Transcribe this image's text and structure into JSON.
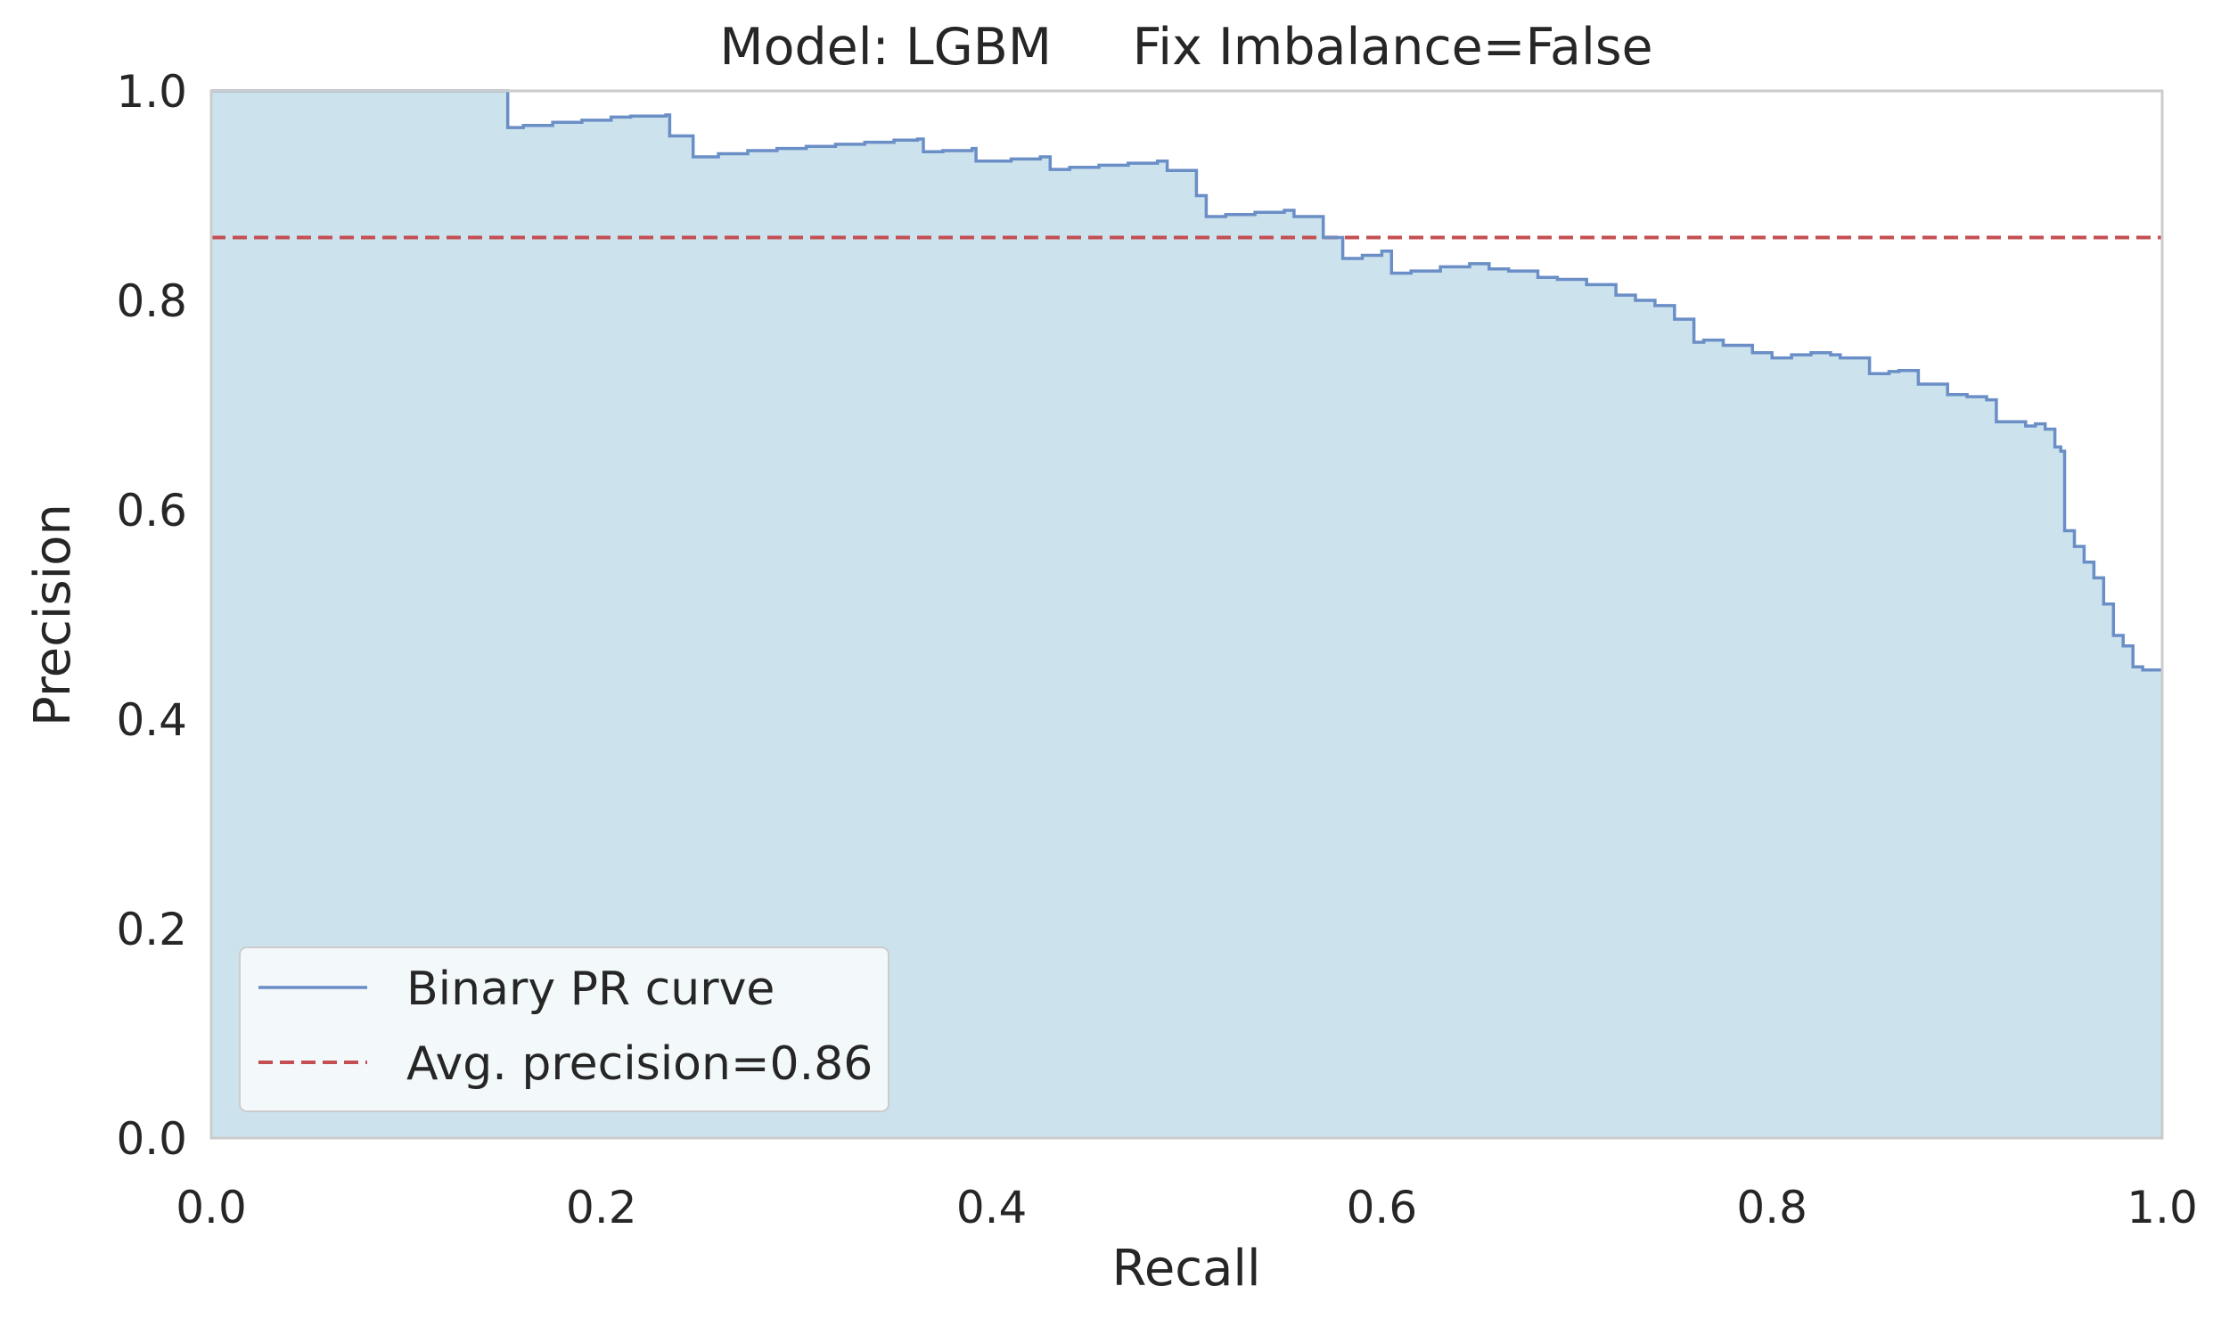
{
  "chart_data": {
    "type": "area",
    "title": "Model: LGBM     Fix Imbalance=False",
    "xlabel": "Recall",
    "ylabel": "Precision",
    "xlim": [
      0.0,
      1.0
    ],
    "ylim": [
      0.0,
      1.0
    ],
    "xticks": [
      "0.0",
      "0.2",
      "0.4",
      "0.6",
      "0.8",
      "1.0"
    ],
    "yticks": [
      "0.0",
      "0.2",
      "0.4",
      "0.6",
      "0.8",
      "1.0"
    ],
    "grid": false,
    "legend_position": "lower-left",
    "series": [
      {
        "name": "Binary PR curve",
        "style": "step-post",
        "color": "#6a8ec6",
        "fill_color": "#cce2ed",
        "x": [
          0.0,
          0.152,
          0.16,
          0.175,
          0.19,
          0.205,
          0.215,
          0.233,
          0.235,
          0.247,
          0.26,
          0.275,
          0.29,
          0.305,
          0.32,
          0.335,
          0.35,
          0.362,
          0.365,
          0.375,
          0.39,
          0.392,
          0.41,
          0.425,
          0.43,
          0.44,
          0.455,
          0.47,
          0.485,
          0.49,
          0.505,
          0.51,
          0.52,
          0.535,
          0.55,
          0.555,
          0.57,
          0.58,
          0.59,
          0.6,
          0.605,
          0.615,
          0.63,
          0.645,
          0.655,
          0.665,
          0.68,
          0.69,
          0.705,
          0.72,
          0.73,
          0.74,
          0.75,
          0.76,
          0.765,
          0.775,
          0.79,
          0.8,
          0.81,
          0.82,
          0.83,
          0.835,
          0.85,
          0.86,
          0.865,
          0.875,
          0.89,
          0.9,
          0.91,
          0.915,
          0.93,
          0.935,
          0.94,
          0.945,
          0.948,
          0.95,
          0.955,
          0.96,
          0.965,
          0.97,
          0.975,
          0.98,
          0.985,
          0.99,
          1.0
        ],
        "y": [
          1.0,
          0.965,
          0.967,
          0.97,
          0.972,
          0.975,
          0.976,
          0.977,
          0.957,
          0.937,
          0.94,
          0.943,
          0.945,
          0.947,
          0.949,
          0.951,
          0.953,
          0.954,
          0.942,
          0.943,
          0.945,
          0.933,
          0.935,
          0.937,
          0.925,
          0.927,
          0.929,
          0.931,
          0.933,
          0.924,
          0.9,
          0.88,
          0.882,
          0.884,
          0.886,
          0.88,
          0.86,
          0.84,
          0.843,
          0.847,
          0.826,
          0.828,
          0.832,
          0.835,
          0.83,
          0.828,
          0.822,
          0.82,
          0.815,
          0.805,
          0.8,
          0.795,
          0.782,
          0.76,
          0.762,
          0.757,
          0.75,
          0.745,
          0.748,
          0.75,
          0.748,
          0.745,
          0.73,
          0.732,
          0.733,
          0.72,
          0.71,
          0.708,
          0.705,
          0.684,
          0.68,
          0.682,
          0.677,
          0.66,
          0.656,
          0.58,
          0.565,
          0.55,
          0.535,
          0.51,
          0.48,
          0.47,
          0.45,
          0.447,
          0.447
        ]
      },
      {
        "name": "Avg. precision=0.86",
        "style": "dashed",
        "color": "#c44e52",
        "value": 0.86
      }
    ]
  }
}
